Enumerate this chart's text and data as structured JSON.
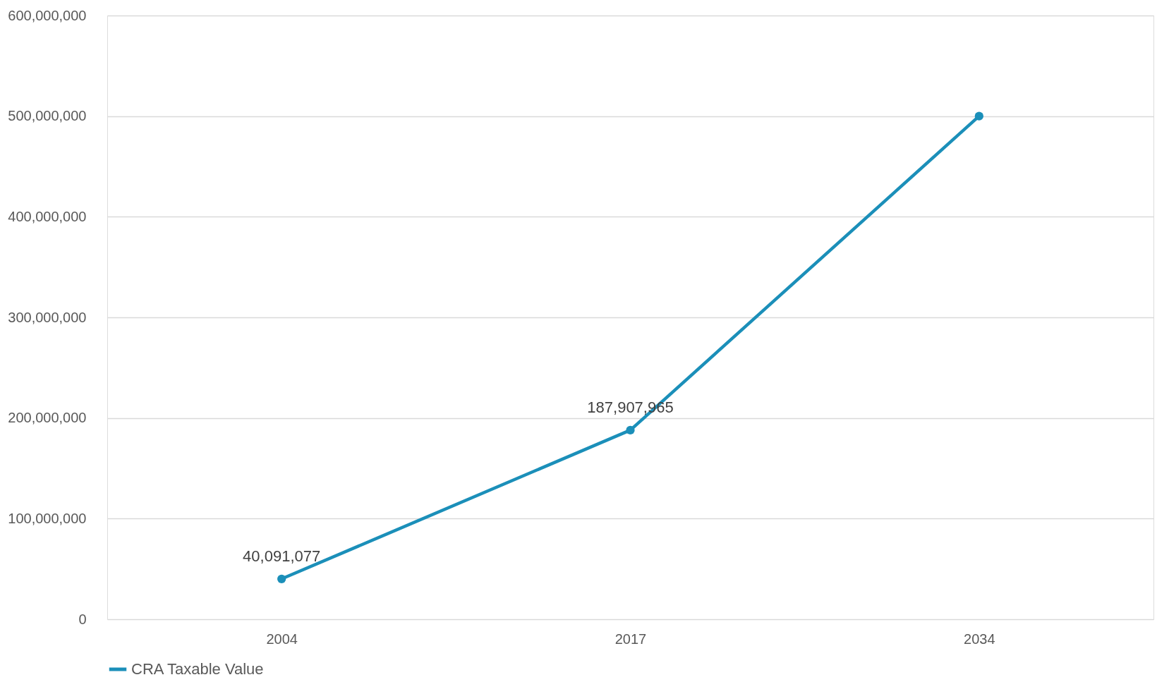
{
  "chart_data": {
    "type": "line",
    "categories": [
      "2004",
      "2017",
      "2034"
    ],
    "series": [
      {
        "name": "CRA Taxable Value",
        "color": "#1b8fb9",
        "values": [
          40091077,
          187907965,
          500000000
        ],
        "value_labels": [
          "40,091,077",
          "187,907,965",
          null
        ]
      }
    ],
    "ylim": [
      0,
      600000000
    ],
    "yticks": [
      0,
      {
        "value": 100000000,
        "label": "100,000,000"
      },
      {
        "value": 200000000,
        "label": "200,000,000"
      },
      {
        "value": 300000000,
        "label": "300,000,000"
      },
      {
        "value": 400000000,
        "label": "400,000,000"
      },
      {
        "value": 500000000,
        "label": "500,000,000"
      },
      {
        "value": 600000000,
        "label": "600,000,000"
      }
    ],
    "grid": "y",
    "legend": "bottom",
    "marker": "circle",
    "line_style": "solid"
  }
}
